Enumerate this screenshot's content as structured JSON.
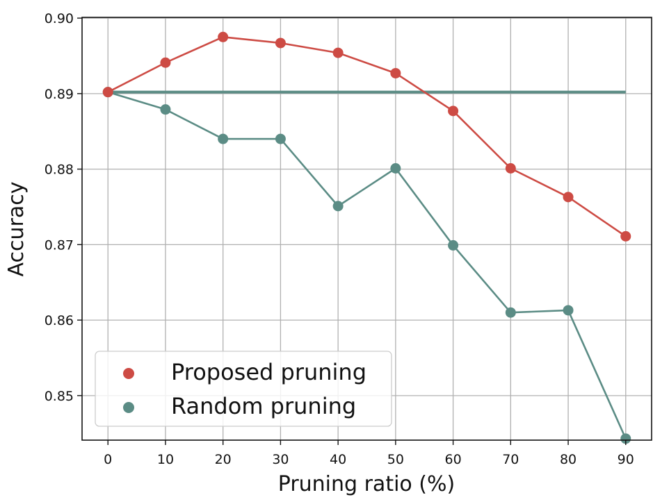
{
  "chart_data": {
    "type": "line",
    "xlabel": "Pruning ratio (%)",
    "ylabel": "Accuracy",
    "x": [
      0,
      10,
      20,
      30,
      40,
      50,
      60,
      70,
      80,
      90
    ],
    "xlim": [
      -4.5,
      94.5
    ],
    "ylim": [
      0.8441,
      0.9001
    ],
    "xticks": [
      0,
      10,
      20,
      30,
      40,
      50,
      60,
      70,
      80,
      90
    ],
    "yticks": [
      0.85,
      0.86,
      0.87,
      0.88,
      0.89,
      0.9
    ],
    "ytick_labels": [
      "0.85",
      "0.86",
      "0.87",
      "0.88",
      "0.89",
      "0.90"
    ],
    "grid": true,
    "legend_position": "lower-left",
    "baseline": {
      "y": 0.8902,
      "color": "#5b8c85"
    },
    "series": [
      {
        "name": "Proposed pruning",
        "color": "#cd4b44",
        "values": [
          0.8902,
          0.8941,
          0.8975,
          0.8967,
          0.8954,
          0.8927,
          0.8877,
          0.8801,
          0.8763,
          0.8711
        ]
      },
      {
        "name": "Random pruning",
        "color": "#5b8c85",
        "values": [
          0.8902,
          0.8879,
          0.884,
          0.884,
          0.8751,
          0.8801,
          0.8699,
          0.861,
          0.8613,
          0.8443
        ]
      }
    ]
  }
}
